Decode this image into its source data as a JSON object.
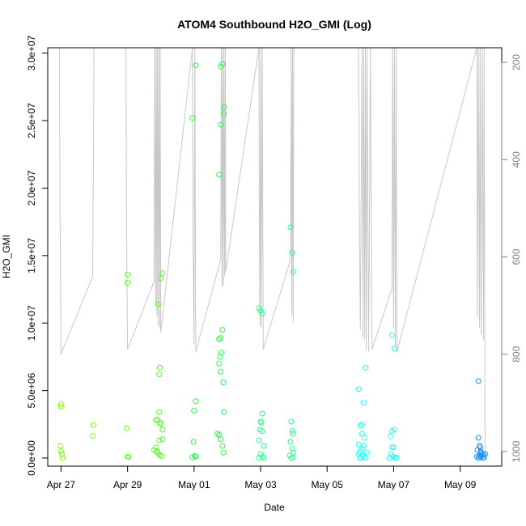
{
  "chart_data": {
    "type": "scatter",
    "title": "ATOM4 Southbound H2O_GMI (Log)",
    "xlabel": "Date",
    "ylabel": "H2O_GMI",
    "x_ticks": [
      "Apr 27",
      "Apr 29",
      "May 01",
      "May 03",
      "May 05",
      "May 07",
      "May 09"
    ],
    "x_tick_days": [
      0,
      2,
      4,
      6,
      8,
      10,
      12
    ],
    "xlim_days": [
      -0.4,
      13.25
    ],
    "y_ticks": [
      "0.0e+00",
      "5.0e+06",
      "1.0e+07",
      "1.5e+07",
      "2.0e+07",
      "2.5e+07",
      "3.0e+07"
    ],
    "y_tick_values": [
      0,
      5000000,
      10000000,
      15000000,
      20000000,
      25000000,
      30000000
    ],
    "ylim": [
      -600000,
      30400000
    ],
    "y2_ticks": [
      "200",
      "400",
      "600",
      "800",
      "1000"
    ],
    "y2_tick_values": [
      200,
      400,
      600,
      800,
      1000
    ],
    "y2lim": [
      1030,
      170
    ],
    "grid": false,
    "series": [
      {
        "color": "#7FFF00",
        "points": [
          [
            0.0,
            4000000
          ],
          [
            0.0,
            3800000
          ],
          [
            -0.02,
            900000
          ],
          [
            0.0,
            500000
          ],
          [
            0.03,
            300000
          ],
          [
            0.05,
            0
          ],
          [
            0.97,
            2450000
          ],
          [
            0.95,
            1650000
          ]
        ]
      },
      {
        "color": "#55FF22",
        "points": [
          [
            2.0,
            13600000
          ],
          [
            2.0,
            13000000
          ],
          [
            1.98,
            2200000
          ],
          [
            2.0,
            100000
          ],
          [
            2.03,
            80000
          ],
          [
            2.85,
            2800000
          ],
          [
            2.9,
            2850000
          ],
          [
            2.95,
            3400000
          ],
          [
            3.0,
            2600000
          ],
          [
            2.98,
            2500000
          ],
          [
            3.05,
            2100000
          ],
          [
            2.95,
            1300000
          ],
          [
            3.05,
            1400000
          ],
          [
            2.85,
            800000
          ],
          [
            2.8,
            600000
          ],
          [
            2.9,
            400000
          ],
          [
            2.95,
            250000
          ],
          [
            3.02,
            150000
          ],
          [
            2.88,
            500000
          ],
          [
            2.92,
            11400000
          ],
          [
            2.95,
            6200000
          ],
          [
            2.97,
            6700000
          ],
          [
            3.0,
            13300000
          ],
          [
            3.05,
            13700000
          ]
        ]
      },
      {
        "color": "#22FF44",
        "points": [
          [
            3.95,
            25200000
          ],
          [
            4.05,
            29100000
          ],
          [
            4.05,
            4200000
          ],
          [
            4.0,
            3500000
          ],
          [
            3.98,
            1200000
          ],
          [
            4.02,
            150000
          ],
          [
            4.05,
            100000
          ],
          [
            3.95,
            50000
          ],
          [
            4.8,
            29000000
          ],
          [
            4.85,
            29200000
          ],
          [
            4.9,
            26000000
          ],
          [
            4.9,
            25500000
          ],
          [
            4.8,
            24700000
          ],
          [
            4.75,
            21000000
          ],
          [
            4.85,
            9500000
          ],
          [
            4.8,
            8900000
          ],
          [
            4.75,
            8800000
          ],
          [
            4.82,
            7800000
          ],
          [
            4.78,
            7500000
          ],
          [
            4.75,
            7000000
          ],
          [
            4.8,
            6400000
          ],
          [
            4.88,
            5600000
          ],
          [
            4.9,
            3400000
          ],
          [
            4.7,
            1800000
          ],
          [
            4.75,
            1700000
          ],
          [
            4.8,
            1400000
          ],
          [
            4.85,
            900000
          ],
          [
            4.88,
            400000
          ]
        ]
      },
      {
        "color": "#22FF88",
        "points": [
          [
            5.95,
            11100000
          ],
          [
            6.0,
            10900000
          ],
          [
            6.05,
            10700000
          ],
          [
            6.05,
            3300000
          ],
          [
            6.0,
            2700000
          ],
          [
            6.02,
            2600000
          ],
          [
            5.98,
            2100000
          ],
          [
            6.05,
            2000000
          ],
          [
            5.95,
            1300000
          ],
          [
            6.1,
            900000
          ],
          [
            6.0,
            300000
          ],
          [
            6.05,
            100000
          ],
          [
            6.1,
            0
          ],
          [
            5.95,
            0
          ],
          [
            6.9,
            17100000
          ],
          [
            6.95,
            15200000
          ],
          [
            6.98,
            13800000
          ],
          [
            6.92,
            2700000
          ],
          [
            6.95,
            2000000
          ],
          [
            6.98,
            1800000
          ],
          [
            6.9,
            1200000
          ],
          [
            6.95,
            700000
          ],
          [
            6.98,
            400000
          ],
          [
            6.88,
            200000
          ],
          [
            6.92,
            0
          ],
          [
            6.98,
            50000
          ]
        ]
      },
      {
        "color": "#22FFEE",
        "points": [
          [
            8.95,
            5100000
          ],
          [
            9.15,
            6700000
          ],
          [
            9.1,
            4100000
          ],
          [
            9.05,
            2500000
          ],
          [
            9.0,
            2400000
          ],
          [
            9.05,
            1800000
          ],
          [
            9.12,
            1500000
          ],
          [
            8.95,
            1000000
          ],
          [
            9.05,
            700000
          ],
          [
            9.1,
            900000
          ],
          [
            9.0,
            500000
          ],
          [
            8.95,
            300000
          ],
          [
            9.05,
            200000
          ],
          [
            9.1,
            100000
          ],
          [
            9.0,
            50000
          ],
          [
            9.15,
            0
          ],
          [
            9.2,
            400000
          ],
          [
            9.0,
            0
          ],
          [
            9.95,
            9100000
          ],
          [
            10.02,
            8100000
          ],
          [
            9.95,
            2000000
          ],
          [
            10.02,
            2100000
          ],
          [
            9.9,
            1600000
          ],
          [
            9.95,
            800000
          ],
          [
            10.0,
            800000
          ],
          [
            9.92,
            300000
          ],
          [
            9.98,
            100000
          ],
          [
            10.05,
            0
          ],
          [
            9.88,
            0
          ],
          [
            10.08,
            50000
          ]
        ]
      },
      {
        "color": "#1E90FF",
        "points": [
          [
            12.55,
            5700000
          ],
          [
            12.55,
            1500000
          ],
          [
            12.58,
            900000
          ],
          [
            12.6,
            800000
          ],
          [
            12.52,
            600000
          ],
          [
            12.62,
            500000
          ],
          [
            12.65,
            300000
          ],
          [
            12.7,
            250000
          ],
          [
            12.58,
            200000
          ],
          [
            12.65,
            150000
          ],
          [
            12.6,
            100000
          ],
          [
            12.72,
            50000
          ],
          [
            12.55,
            0
          ],
          [
            12.68,
            0
          ],
          [
            12.75,
            300000
          ],
          [
            12.62,
            400000
          ],
          [
            12.5,
            100000
          ]
        ]
      }
    ],
    "pressure_track": {
      "color": "#C8C8C8",
      "points": [
        [
          -0.05,
          170
        ],
        [
          -0.03,
          505
        ],
        [
          0.0,
          800
        ],
        [
          0.95,
          640
        ],
        [
          0.98,
          340
        ],
        [
          0.99,
          170
        ],
        [
          1.95,
          170
        ],
        [
          1.97,
          530
        ],
        [
          2.0,
          790
        ],
        [
          2.8,
          650
        ],
        [
          2.82,
          170
        ],
        [
          2.84,
          700
        ],
        [
          2.86,
          170
        ],
        [
          2.88,
          720
        ],
        [
          2.9,
          170
        ],
        [
          2.92,
          740
        ],
        [
          2.94,
          170
        ],
        [
          2.96,
          745
        ],
        [
          2.98,
          170
        ],
        [
          3.0,
          755
        ],
        [
          3.95,
          170
        ],
        [
          3.97,
          555
        ],
        [
          4.0,
          780
        ],
        [
          4.02,
          170
        ],
        [
          4.05,
          795
        ],
        [
          4.8,
          605
        ],
        [
          4.82,
          170
        ],
        [
          4.84,
          660
        ],
        [
          4.86,
          170
        ],
        [
          4.88,
          660
        ],
        [
          4.9,
          170
        ],
        [
          4.92,
          640
        ],
        [
          4.94,
          170
        ],
        [
          4.95,
          630
        ],
        [
          5.95,
          170
        ],
        [
          5.96,
          530
        ],
        [
          5.98,
          740
        ],
        [
          6.0,
          170
        ],
        [
          6.02,
          745
        ],
        [
          6.05,
          170
        ],
        [
          6.08,
          790
        ],
        [
          6.9,
          605
        ],
        [
          6.92,
          170
        ],
        [
          6.94,
          720
        ],
        [
          6.96,
          170
        ],
        [
          6.98,
          735
        ],
        [
          7.0,
          170
        ],
        [
          8.95,
          170
        ],
        [
          8.97,
          535
        ],
        [
          9.0,
          750
        ],
        [
          9.05,
          170
        ],
        [
          9.08,
          765
        ],
        [
          9.1,
          170
        ],
        [
          9.13,
          770
        ],
        [
          9.15,
          170
        ],
        [
          9.18,
          790
        ],
        [
          9.2,
          170
        ],
        [
          9.25,
          795
        ],
        [
          9.3,
          170
        ],
        [
          9.35,
          790
        ],
        [
          9.95,
          665
        ],
        [
          9.97,
          170
        ],
        [
          10.0,
          745
        ],
        [
          10.02,
          170
        ],
        [
          10.05,
          785
        ],
        [
          10.08,
          170
        ],
        [
          10.1,
          795
        ],
        [
          12.5,
          170
        ],
        [
          12.52,
          725
        ],
        [
          12.55,
          170
        ],
        [
          12.58,
          745
        ],
        [
          12.6,
          170
        ],
        [
          12.63,
          760
        ],
        [
          12.66,
          170
        ],
        [
          12.7,
          770
        ],
        [
          12.72,
          170
        ],
        [
          12.75,
          1000
        ]
      ]
    }
  }
}
